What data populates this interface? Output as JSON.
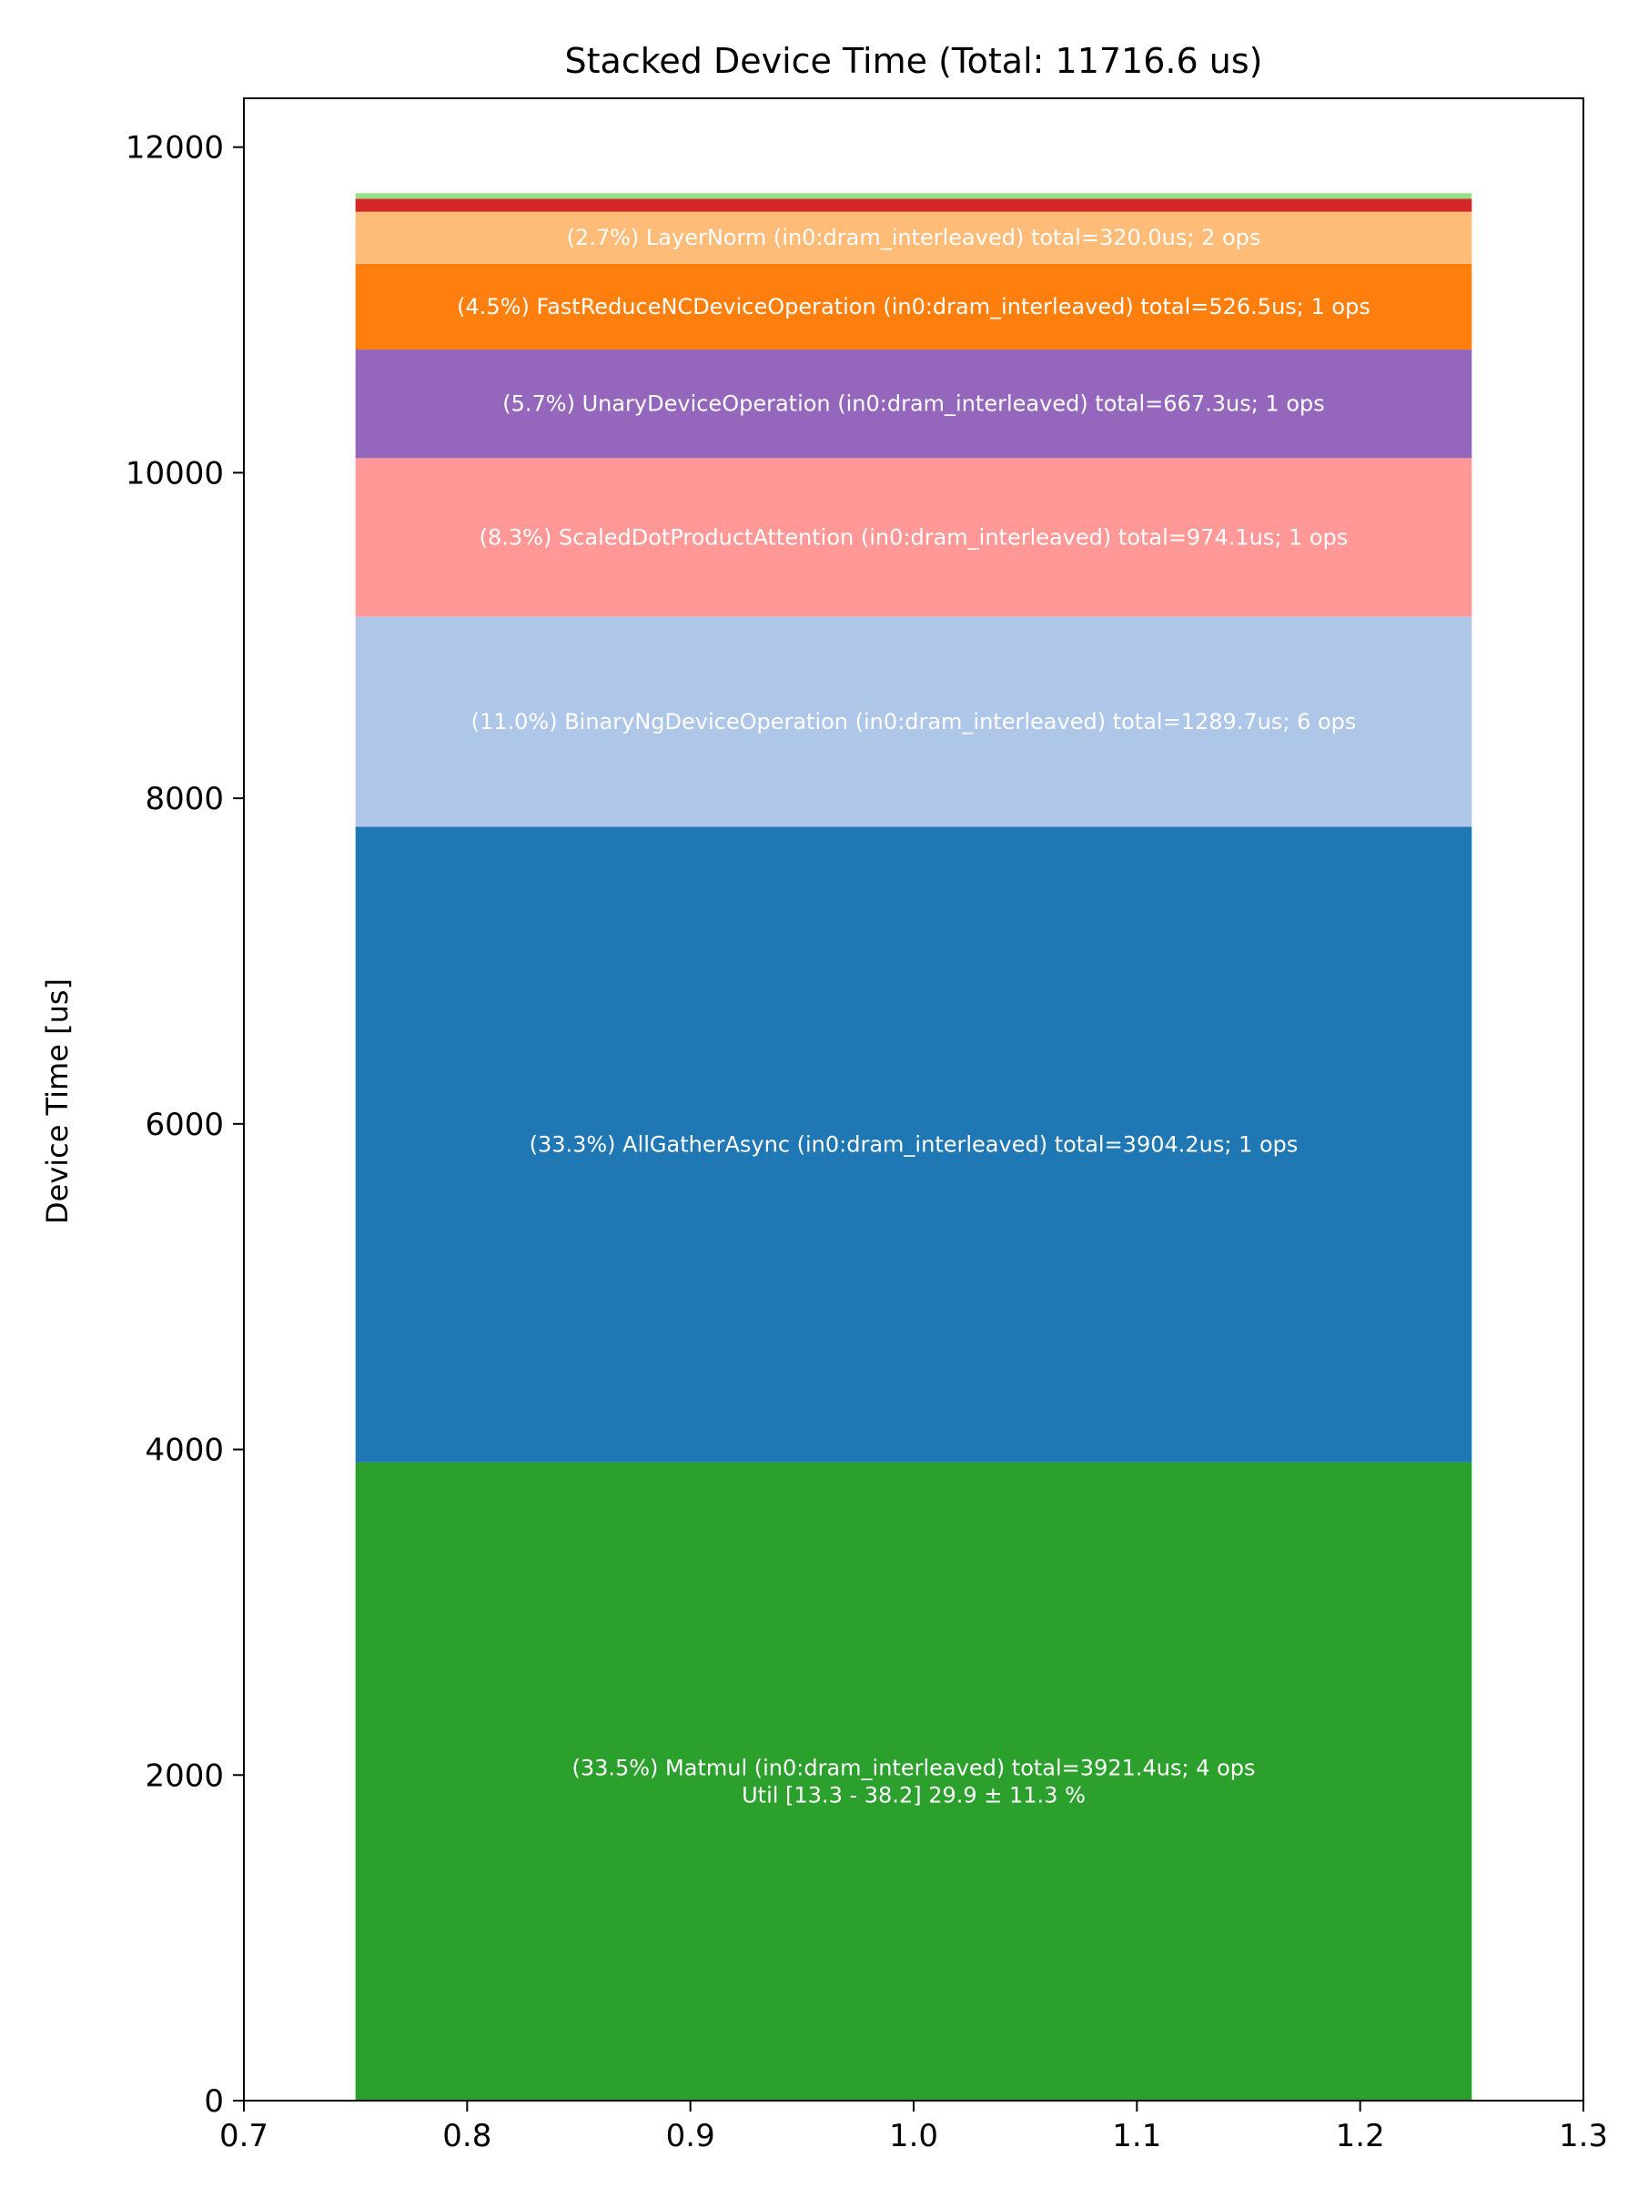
{
  "chart_data": {
    "type": "bar",
    "stacked": true,
    "title": "Stacked Device Time (Total: 11716.6 us)",
    "xlabel": "",
    "ylabel": "Device Time [us]",
    "xlim": [
      0.7,
      1.3
    ],
    "ylim": [
      0,
      12300
    ],
    "bar_x": 1.0,
    "bar_width": 0.5,
    "xticks": [
      "0.7",
      "0.8",
      "0.9",
      "1.0",
      "1.1",
      "1.2",
      "1.3"
    ],
    "yticks": [
      "0",
      "2000",
      "4000",
      "6000",
      "8000",
      "10000",
      "12000"
    ],
    "grid": false,
    "segments": [
      {
        "value": 3921.4,
        "color": "#2ca02c",
        "label": "(33.5%) Matmul (in0:dram_interleaved) total=3921.4us; 4 ops\nUtil [13.3 - 38.2] 29.9 ± 11.3 %"
      },
      {
        "value": 3904.2,
        "color": "#1f77b4",
        "label": "(33.3%) AllGatherAsync (in0:dram_interleaved) total=3904.2us; 1 ops"
      },
      {
        "value": 1289.7,
        "color": "#aec7e8",
        "label": "(11.0%) BinaryNgDeviceOperation (in0:dram_interleaved) total=1289.7us; 6 ops"
      },
      {
        "value": 974.1,
        "color": "#ff9896",
        "label": "(8.3%) ScaledDotProductAttention (in0:dram_interleaved) total=974.1us; 1 ops"
      },
      {
        "value": 667.3,
        "color": "#9467bd",
        "label": "(5.7%) UnaryDeviceOperation (in0:dram_interleaved) total=667.3us; 1 ops"
      },
      {
        "value": 526.5,
        "color": "#ff7f0e",
        "label": "(4.5%) FastReduceNCDeviceOperation (in0:dram_interleaved) total=526.5us; 1 ops"
      },
      {
        "value": 320.0,
        "color": "#ffbb78",
        "label": "(2.7%) LayerNorm (in0:dram_interleaved) total=320.0us; 2 ops"
      },
      {
        "value": 80.0,
        "color": "#d62728",
        "label": ""
      },
      {
        "value": 33.4,
        "color": "#98df8a",
        "label": ""
      }
    ]
  }
}
